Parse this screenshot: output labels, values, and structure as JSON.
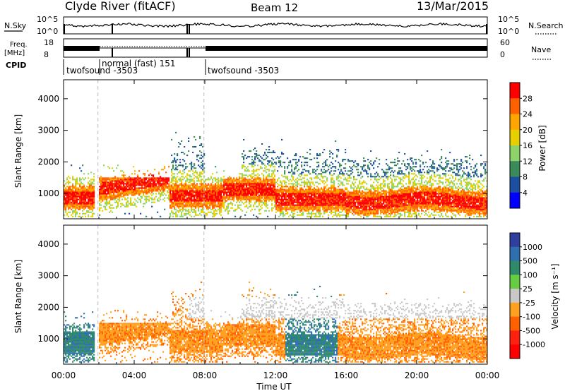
{
  "header": {
    "station": "Clyde River (fitACF)",
    "beam": "Beam 12",
    "date": "13/Mar/2015"
  },
  "strips": {
    "nsky_label": "N.Sky",
    "nsky_ticks": [
      "10^5",
      "10^0"
    ],
    "nsearch_label": "N.Search",
    "nsearch_ticks": [
      "10^5",
      "10^0"
    ],
    "freq_label": "Freq.",
    "freq_unit": "[MHz]",
    "freq_ticks": [
      "18",
      "8"
    ],
    "nave_label": "Nave",
    "nave_ticks": [
      "60",
      "0"
    ],
    "cpid_label": "CPID",
    "cpid_segments": [
      {
        "text": "twofsound -3503"
      },
      {
        "text": "normal (fast) 151"
      },
      {
        "text": "twofsound -3503"
      }
    ]
  },
  "chart_data": [
    {
      "type": "heatmap",
      "name": "power",
      "ylabel": "Slant Range [km]",
      "yticks": [
        1000,
        2000,
        3000,
        4000
      ],
      "ylim": [
        200,
        4600
      ],
      "colorbar_label": "Power [dB]",
      "colorbar_ticks": [
        "28",
        "24",
        "20",
        "16",
        "12",
        "8",
        "4"
      ],
      "colorbar_colors": [
        "#ff0000",
        "#ff6000",
        "#ffa500",
        "#e8d000",
        "#8ed36a",
        "#3a8a5a",
        "#1c4fa0",
        "#0000ff"
      ]
    },
    {
      "type": "heatmap",
      "name": "velocity",
      "ylabel": "Slant Range [km]",
      "yticks": [
        1000,
        2000,
        3000,
        4000
      ],
      "ylim": [
        200,
        4600
      ],
      "colorbar_label": "Velocity [m s⁻¹]",
      "colorbar_ticks": [
        "1000",
        "500",
        "100",
        "25",
        "-25",
        "-100",
        "-500",
        "-1000"
      ],
      "colorbar_colors": [
        "#2f3f9f",
        "#2f6fb0",
        "#2f8a6a",
        "#66cc44",
        "#c8c8c8",
        "#ffa020",
        "#ff6000",
        "#ff2010",
        "#ff0000"
      ]
    }
  ],
  "xaxis": {
    "label": "Time UT",
    "ticks": [
      "00:00",
      "04:00",
      "08:00",
      "12:00",
      "16:00",
      "20:00",
      "00:00"
    ]
  }
}
